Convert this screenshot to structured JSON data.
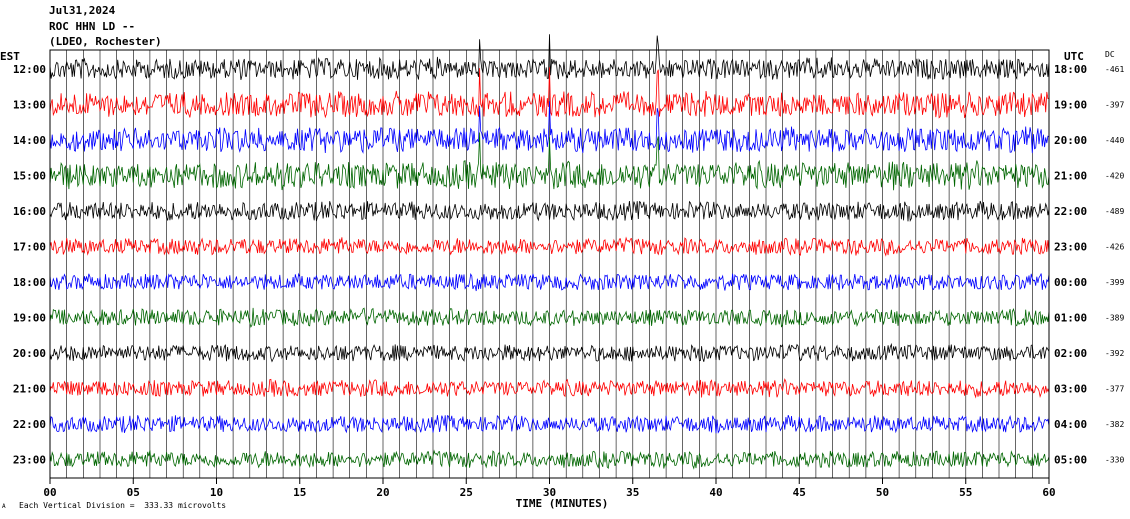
{
  "header": {
    "date": "Jul31,2024",
    "station": "ROC HHN LD --",
    "network": "(LDEO, Rochester)"
  },
  "footer": {
    "scale_note": "Each Vertical Division =  333.33 microvolts",
    "corner_mark": "A"
  },
  "chart_data": {
    "type": "line",
    "title": "",
    "xlabel": "TIME (MINUTES)",
    "xlim": [
      0,
      60
    ],
    "x_ticks": [
      "00",
      "05",
      "10",
      "15",
      "20",
      "25",
      "30",
      "35",
      "40",
      "45",
      "50",
      "55",
      "60"
    ],
    "left_axis_label": "EST",
    "right_axis_label": "UTC",
    "dc_label": "DC",
    "grid": "vertical lines at each minute",
    "trace_colors": [
      "#000000",
      "#ff0000",
      "#0000ff",
      "#006600"
    ],
    "rows": [
      {
        "est": "12:00",
        "utc": "18:00",
        "dc": "-461"
      },
      {
        "est": "13:00",
        "utc": "19:00",
        "dc": "-397"
      },
      {
        "est": "14:00",
        "utc": "20:00",
        "dc": "-440"
      },
      {
        "est": "15:00",
        "utc": "21:00",
        "dc": "-420"
      },
      {
        "est": "16:00",
        "utc": "22:00",
        "dc": "-489"
      },
      {
        "est": "17:00",
        "utc": "23:00",
        "dc": "-426"
      },
      {
        "est": "18:00",
        "utc": "00:00",
        "dc": "-399"
      },
      {
        "est": "19:00",
        "utc": "01:00",
        "dc": "-389"
      },
      {
        "est": "20:00",
        "utc": "02:00",
        "dc": "-392"
      },
      {
        "est": "21:00",
        "utc": "03:00",
        "dc": "-377"
      },
      {
        "est": "22:00",
        "utc": "04:00",
        "dc": "-382"
      },
      {
        "est": "23:00",
        "utc": "05:00",
        "dc": "-330"
      }
    ],
    "trace_amplitude": [
      1.0,
      1.2,
      1.2,
      1.3,
      0.9,
      0.8,
      0.8,
      0.8,
      0.8,
      0.8,
      0.8,
      0.8
    ],
    "spikes_minutes": [
      25.8,
      30.0,
      36.5
    ]
  }
}
